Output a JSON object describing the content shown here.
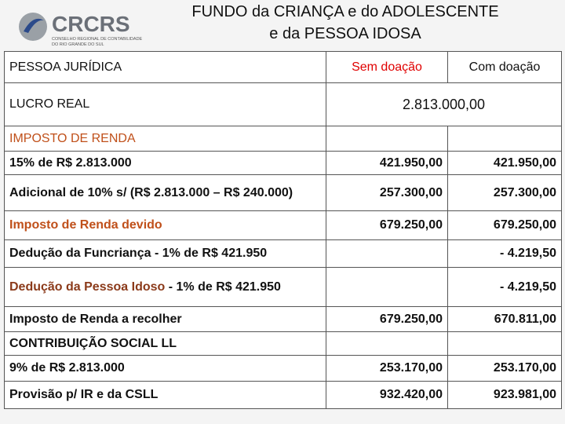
{
  "logo": {
    "name": "CRCRS",
    "subtitle": [
      "CONSELHO REGIONAL DE CONTABILIDADE",
      "DO RIO GRANDE DO SUL"
    ]
  },
  "header": {
    "title": [
      "FUNDO da CRIANÇA e do ADOLESCENTE",
      "e da PESSOA IDOSA"
    ]
  },
  "table": {
    "columns": [
      "PESSOA JURÍDICA",
      "Sem doação",
      "Com doação"
    ],
    "lucro": {
      "label": "LUCRO REAL",
      "value": "2.813.000,00"
    },
    "imposto_section": "IMPOSTO DE RENDA",
    "rows": [
      {
        "label": "15% de R$ 2.813.000",
        "sem": "421.950,00",
        "com": "421.950,00"
      },
      {
        "label": "Adicional de 10% s/ (R$ 2.813.000 – R$ 240.000)",
        "sem": "257.300,00",
        "com": "257.300,00"
      },
      {
        "label": "Imposto de Renda devido",
        "sem": "679.250,00",
        "com": "679.250,00"
      }
    ],
    "deducoes": [
      {
        "label": "Dedução da Funcriança - 1% de R$ 421.950",
        "com": "- 4.219,50"
      },
      {
        "label": "Dedução da Pessoa Idoso",
        "label_rest": " - 1% de R$ 421.950",
        "com": "- 4.219,50"
      }
    ],
    "recolher": {
      "label": "Imposto de Renda a recolher",
      "sem": "679.250,00",
      "com": "670.811,00"
    },
    "csll_section": "CONTRIBUIÇÃO SOCIAL LL",
    "csll_rows": [
      {
        "label": "9% de R$ 2.813.000",
        "sem": "253.170,00",
        "com": "253.170,00"
      },
      {
        "label": "Provisão p/ IR e da CSLL",
        "sem": "932.420,00",
        "com": "923.981,00"
      }
    ]
  }
}
